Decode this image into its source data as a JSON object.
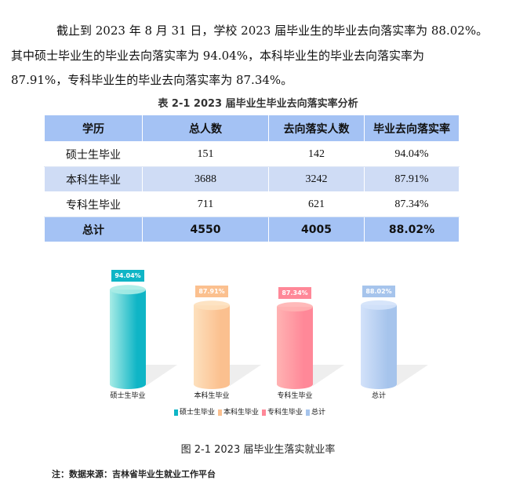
{
  "paragraph": {
    "line1": "截止到 2023 年 8 月 31 日，学校 2023 届毕业生的毕业去向落实率为 88.02%。",
    "line2": "其中硕士毕业生的毕业去向落实率为 94.04%，本科毕业生的毕业去向落实率为",
    "line3": "87.91%，专科毕业生的毕业去向落实率为 87.34%。"
  },
  "table": {
    "caption": "表 2-1  2023 届毕业生毕业去向落实率分析",
    "headers": [
      "学历",
      "总人数",
      "去向落实人数",
      "毕业去向落实率"
    ],
    "rows": [
      [
        "硕士生毕业",
        "151",
        "142",
        "94.04%"
      ],
      [
        "本科生毕业",
        "3688",
        "3242",
        "87.91%"
      ],
      [
        "专科生毕业",
        "711",
        "621",
        "87.34%"
      ],
      [
        "总计",
        "4550",
        "4005",
        "88.02%"
      ]
    ]
  },
  "chart_data": {
    "type": "bar",
    "style": "3d-cylinder",
    "categories": [
      "硕士生毕业",
      "本科生毕业",
      "专科生毕业",
      "总计"
    ],
    "values": [
      94.04,
      87.91,
      87.34,
      88.02
    ],
    "data_labels": [
      "94.04%",
      "87.91%",
      "87.34%",
      "88.02%"
    ],
    "legend": [
      "硕士生毕业",
      "本科生毕业",
      "专科生毕业",
      "总计"
    ],
    "legend_position": "bottom",
    "colors": [
      "#0fb5c6",
      "#fbc08f",
      "#ff8898",
      "#a6c4ec"
    ],
    "grid": false
  },
  "figure_caption": "图 2-1  2023 届毕业生落实就业率",
  "note": "注：数据来源：吉林省毕业生就业工作平台"
}
